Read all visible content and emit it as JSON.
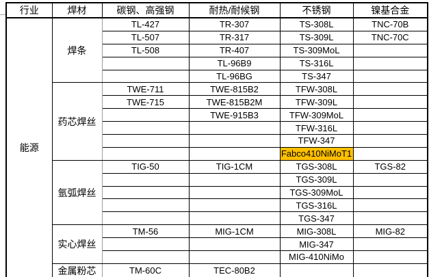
{
  "table": {
    "headers": [
      "行业",
      "焊材",
      "碳钢、高强钢",
      "耐热/耐候钢",
      "不锈钢",
      "镍基合金"
    ],
    "industry": "能源",
    "groups": [
      {
        "label": "焊条",
        "rows": [
          [
            "TL-427",
            "TR-307",
            "TS-308L",
            "TNC-70B"
          ],
          [
            "TL-507",
            "TR-317",
            "TS-309L",
            "TNC-70C"
          ],
          [
            "TL-508",
            "TR-407",
            "TS-309MoL",
            ""
          ],
          [
            "",
            "TL-96B9",
            "TS-316L",
            ""
          ],
          [
            "",
            "TL-96BG",
            "TS-347",
            ""
          ]
        ]
      },
      {
        "label": "药芯焊丝",
        "rows": [
          [
            "TWE-711",
            "TWE-815B2",
            "TFW-308L",
            ""
          ],
          [
            "TWE-715",
            "TWE-815B2M",
            "TFW-309L",
            ""
          ],
          [
            "",
            "TWE-915B3",
            "TFW-309MoL",
            ""
          ],
          [
            "",
            "",
            "TFW-316L",
            ""
          ],
          [
            "",
            "",
            "TFW-347",
            ""
          ],
          [
            "",
            "",
            "Fabco410NiMoT1",
            ""
          ]
        ]
      },
      {
        "label": "氩弧焊丝",
        "rows": [
          [
            "TIG-50",
            "TIG-1CM",
            "TGS-308L",
            "TGS-82"
          ],
          [
            "",
            "",
            "TGS-309L",
            ""
          ],
          [
            "",
            "",
            "TGS-309MoL",
            ""
          ],
          [
            "",
            "",
            "TGS-316L",
            ""
          ],
          [
            "",
            "",
            "TGS-347",
            ""
          ]
        ]
      },
      {
        "label": "实心焊丝",
        "rows": [
          [
            "TM-56",
            "MIG-1CM",
            "MIG-308L",
            "MIG-82"
          ],
          [
            "",
            "",
            "MIG-347",
            ""
          ],
          [
            "",
            "",
            "MIG-410NiMo",
            ""
          ]
        ]
      },
      {
        "label": "金属粉芯",
        "rows": [
          [
            "TM-60C",
            "TEC-80B2",
            "",
            ""
          ]
        ]
      }
    ],
    "highlight_value": "Fabco410NiMoT1",
    "highlight_color": "#FFC000",
    "grid_color": "#000000",
    "divider_gray": "#9b9b9b"
  }
}
